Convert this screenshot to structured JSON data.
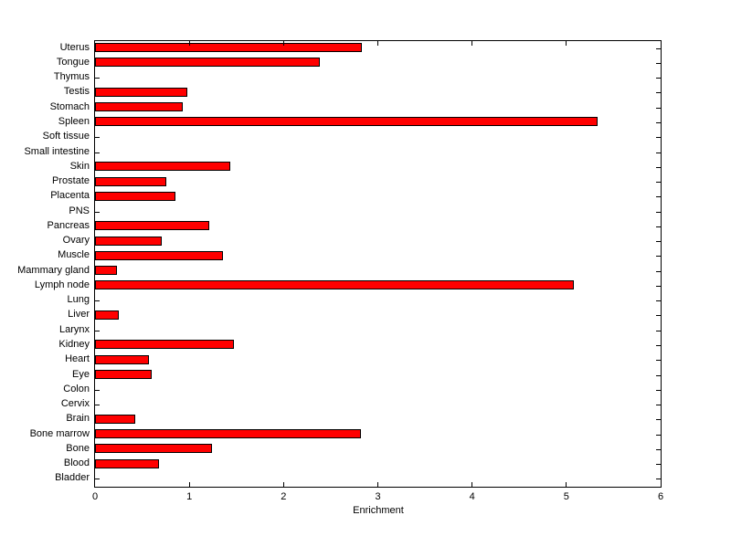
{
  "figure": {
    "background": "#FFFFFF",
    "bar_color": "#FF0000",
    "bar_edge_color": "#000000",
    "axis_color": "#000000"
  },
  "chart_data": {
    "type": "bar",
    "orientation": "horizontal",
    "title": "",
    "xlabel": "Enrichment",
    "ylabel": "",
    "xlim": [
      0,
      6
    ],
    "xticks": [
      0,
      1,
      2,
      3,
      4,
      5,
      6
    ],
    "grid": false,
    "legend": null,
    "categories": [
      "Uterus",
      "Tongue",
      "Thymus",
      "Testis",
      "Stomach",
      "Spleen",
      "Soft tissue",
      "Small intestine",
      "Skin",
      "Prostate",
      "Placenta",
      "PNS",
      "Pancreas",
      "Ovary",
      "Muscle",
      "Mammary gland",
      "Lymph node",
      "Lung",
      "Liver",
      "Larynx",
      "Kidney",
      "Heart",
      "Eye",
      "Colon",
      "Cervix",
      "Brain",
      "Bone marrow",
      "Bone",
      "Blood",
      "Bladder"
    ],
    "values": [
      2.85,
      2.4,
      0,
      1.0,
      0.95,
      5.35,
      0,
      0,
      1.45,
      0.78,
      0.87,
      0,
      1.23,
      0.73,
      1.38,
      0.25,
      5.1,
      0,
      0.27,
      0,
      1.49,
      0.59,
      0.62,
      0,
      0,
      0.45,
      2.84,
      1.26,
      0.7,
      0
    ]
  }
}
